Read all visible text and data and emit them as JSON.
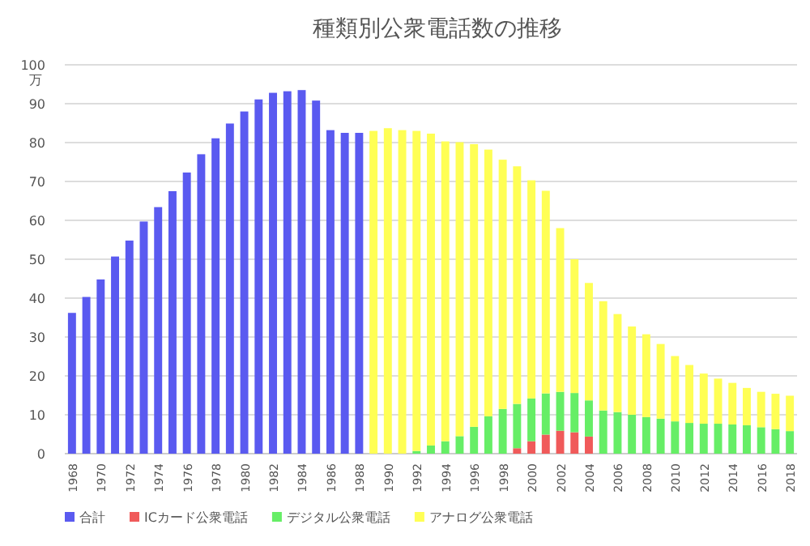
{
  "chart_data": {
    "type": "bar",
    "stacked": true,
    "title": "種類別公衆電話数の推移",
    "ylabel": "万",
    "categories": [
      "1968",
      null,
      "1970",
      null,
      "1972",
      null,
      "1974",
      null,
      "1976",
      null,
      "1978",
      null,
      "1980",
      null,
      "1982",
      null,
      "1984",
      null,
      "1986",
      null,
      "1988",
      null,
      "1990",
      null,
      "1992",
      null,
      "1994",
      null,
      "1996",
      null,
      "1998",
      null,
      "2000",
      null,
      "2002",
      null,
      "2004",
      null,
      "2006",
      null,
      "2008",
      null,
      "2010",
      null,
      "2012",
      null,
      "2014",
      null,
      "2016",
      null,
      "2018"
    ],
    "series": [
      {
        "name": "合計",
        "color": "#5a5af0",
        "values": [
          36.2,
          40.3,
          44.8,
          50.7,
          54.8,
          59.7,
          63.4,
          67.5,
          72.3,
          77.0,
          81.1,
          84.9,
          88.0,
          91.1,
          92.8,
          93.2,
          93.5,
          90.8,
          83.2,
          82.5,
          82.5,
          null,
          null,
          null,
          null,
          null,
          null,
          null,
          null,
          null,
          null,
          null,
          null,
          null,
          null,
          null,
          null,
          null,
          null,
          null,
          null,
          null,
          null,
          null,
          null,
          null,
          null,
          null,
          null,
          null,
          null
        ]
      },
      {
        "name": "ICカード公衆電話",
        "color": "#f05a5a",
        "values": [
          null,
          null,
          null,
          null,
          null,
          null,
          null,
          null,
          null,
          null,
          null,
          null,
          null,
          null,
          null,
          null,
          null,
          null,
          null,
          null,
          null,
          null,
          null,
          null,
          null,
          null,
          null,
          null,
          null,
          null,
          null,
          1.4,
          3.2,
          4.9,
          5.9,
          5.5,
          4.4,
          null,
          null,
          null,
          null,
          null,
          null,
          null,
          null,
          null,
          null,
          null,
          null,
          null,
          null
        ]
      },
      {
        "name": "デジタル公衆電話",
        "color": "#66ee66",
        "values": [
          null,
          null,
          null,
          null,
          null,
          null,
          null,
          null,
          null,
          null,
          null,
          null,
          null,
          null,
          null,
          null,
          null,
          null,
          null,
          null,
          null,
          null,
          null,
          null,
          0.7,
          2.1,
          3.2,
          4.5,
          6.9,
          9.6,
          11.5,
          11.4,
          11.0,
          10.6,
          10.0,
          10.1,
          9.3,
          11.1,
          10.7,
          10.0,
          9.4,
          9.0,
          8.3,
          7.9,
          7.7,
          7.7,
          7.5,
          7.3,
          6.8,
          6.3,
          5.8
        ]
      },
      {
        "name": "アナログ公衆電話",
        "color": "#ffff55",
        "values": [
          null,
          null,
          null,
          null,
          null,
          null,
          null,
          null,
          null,
          null,
          null,
          null,
          null,
          null,
          null,
          null,
          null,
          null,
          null,
          null,
          null,
          83.0,
          83.7,
          83.2,
          82.3,
          80.2,
          77.1,
          75.6,
          72.7,
          68.6,
          64.1,
          61.1,
          56.1,
          52.1,
          42.1,
          34.4,
          30.2,
          28.1,
          25.2,
          22.7,
          21.3,
          19.2,
          16.8,
          14.9,
          12.9,
          11.6,
          10.7,
          9.6,
          9.1,
          9.1,
          9.1
        ]
      }
    ],
    "ylim": [
      0,
      100
    ],
    "yticks": [
      0,
      10,
      20,
      30,
      40,
      50,
      60,
      70,
      80,
      90,
      100
    ],
    "grid": "y",
    "legend": "bottom"
  }
}
